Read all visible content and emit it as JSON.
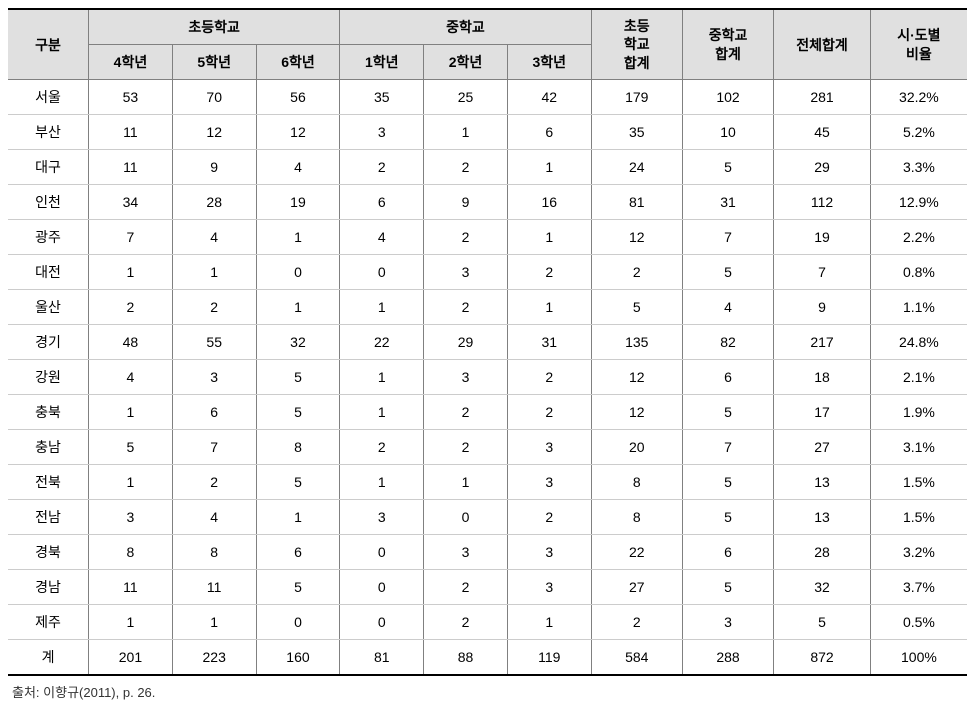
{
  "headers": {
    "region": "구분",
    "elementary": "초등학교",
    "middle": "중학교",
    "elem_sum": "초등\n학교\n합계",
    "mid_sum": "중학교\n합계",
    "total": "전체합계",
    "ratio": "시·도별\n비율",
    "grades_elem": [
      "4학년",
      "5학년",
      "6학년"
    ],
    "grades_mid": [
      "1학년",
      "2학년",
      "3학년"
    ]
  },
  "rows": [
    {
      "region": "서울",
      "e4": 53,
      "e5": 70,
      "e6": 56,
      "m1": 35,
      "m2": 25,
      "m3": 42,
      "es": 179,
      "ms": 102,
      "tot": 281,
      "pct": "32.2%"
    },
    {
      "region": "부산",
      "e4": 11,
      "e5": 12,
      "e6": 12,
      "m1": 3,
      "m2": 1,
      "m3": 6,
      "es": 35,
      "ms": 10,
      "tot": 45,
      "pct": "5.2%"
    },
    {
      "region": "대구",
      "e4": 11,
      "e5": 9,
      "e6": 4,
      "m1": 2,
      "m2": 2,
      "m3": 1,
      "es": 24,
      "ms": 5,
      "tot": 29,
      "pct": "3.3%"
    },
    {
      "region": "인천",
      "e4": 34,
      "e5": 28,
      "e6": 19,
      "m1": 6,
      "m2": 9,
      "m3": 16,
      "es": 81,
      "ms": 31,
      "tot": 112,
      "pct": "12.9%"
    },
    {
      "region": "광주",
      "e4": 7,
      "e5": 4,
      "e6": 1,
      "m1": 4,
      "m2": 2,
      "m3": 1,
      "es": 12,
      "ms": 7,
      "tot": 19,
      "pct": "2.2%"
    },
    {
      "region": "대전",
      "e4": 1,
      "e5": 1,
      "e6": 0,
      "m1": 0,
      "m2": 3,
      "m3": 2,
      "es": 2,
      "ms": 5,
      "tot": 7,
      "pct": "0.8%"
    },
    {
      "region": "울산",
      "e4": 2,
      "e5": 2,
      "e6": 1,
      "m1": 1,
      "m2": 2,
      "m3": 1,
      "es": 5,
      "ms": 4,
      "tot": 9,
      "pct": "1.1%"
    },
    {
      "region": "경기",
      "e4": 48,
      "e5": 55,
      "e6": 32,
      "m1": 22,
      "m2": 29,
      "m3": 31,
      "es": 135,
      "ms": 82,
      "tot": 217,
      "pct": "24.8%"
    },
    {
      "region": "강원",
      "e4": 4,
      "e5": 3,
      "e6": 5,
      "m1": 1,
      "m2": 3,
      "m3": 2,
      "es": 12,
      "ms": 6,
      "tot": 18,
      "pct": "2.1%"
    },
    {
      "region": "충북",
      "e4": 1,
      "e5": 6,
      "e6": 5,
      "m1": 1,
      "m2": 2,
      "m3": 2,
      "es": 12,
      "ms": 5,
      "tot": 17,
      "pct": "1.9%"
    },
    {
      "region": "충남",
      "e4": 5,
      "e5": 7,
      "e6": 8,
      "m1": 2,
      "m2": 2,
      "m3": 3,
      "es": 20,
      "ms": 7,
      "tot": 27,
      "pct": "3.1%"
    },
    {
      "region": "전북",
      "e4": 1,
      "e5": 2,
      "e6": 5,
      "m1": 1,
      "m2": 1,
      "m3": 3,
      "es": 8,
      "ms": 5,
      "tot": 13,
      "pct": "1.5%"
    },
    {
      "region": "전남",
      "e4": 3,
      "e5": 4,
      "e6": 1,
      "m1": 3,
      "m2": 0,
      "m3": 2,
      "es": 8,
      "ms": 5,
      "tot": 13,
      "pct": "1.5%"
    },
    {
      "region": "경북",
      "e4": 8,
      "e5": 8,
      "e6": 6,
      "m1": 0,
      "m2": 3,
      "m3": 3,
      "es": 22,
      "ms": 6,
      "tot": 28,
      "pct": "3.2%"
    },
    {
      "region": "경남",
      "e4": 11,
      "e5": 11,
      "e6": 5,
      "m1": 0,
      "m2": 2,
      "m3": 3,
      "es": 27,
      "ms": 5,
      "tot": 32,
      "pct": "3.7%"
    },
    {
      "region": "제주",
      "e4": 1,
      "e5": 1,
      "e6": 0,
      "m1": 0,
      "m2": 2,
      "m3": 1,
      "es": 2,
      "ms": 3,
      "tot": 5,
      "pct": "0.5%"
    },
    {
      "region": "계",
      "e4": 201,
      "e5": 223,
      "e6": 160,
      "m1": 81,
      "m2": 88,
      "m3": 119,
      "es": 584,
      "ms": 288,
      "tot": 872,
      "pct": "100%"
    }
  ],
  "source": "출처: 이향규(2011), p. 26.",
  "styling": {
    "header_bg": "#e0e0e0",
    "border_color": "#808080",
    "row_border_color": "#cccccc",
    "outer_border_color": "#000000",
    "font_size_body": 14,
    "font_size_source": 13,
    "text_color": "#000000"
  }
}
